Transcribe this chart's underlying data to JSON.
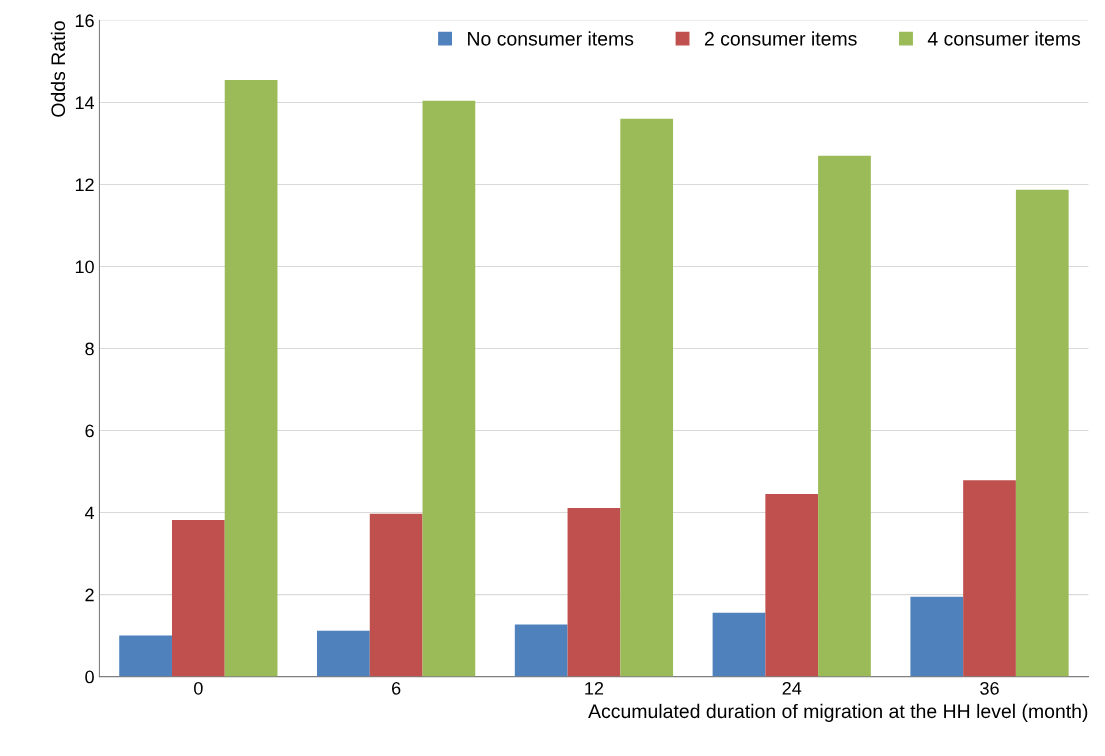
{
  "chart_data": {
    "type": "bar",
    "xlabel": "Accumulated duration of migration at the HH level (month)",
    "ylabel": "Odds Ratio",
    "categories": [
      "0",
      "6",
      "12",
      "24",
      "36"
    ],
    "series": [
      {
        "name": "No consumer items",
        "color": "#4f81bd",
        "values": [
          1.0,
          1.12,
          1.27,
          1.56,
          1.95
        ]
      },
      {
        "name": "2 consumer items",
        "color": "#c0504d",
        "values": [
          3.82,
          3.97,
          4.11,
          4.45,
          4.79
        ]
      },
      {
        "name": "4 consumer items",
        "color": "#9bbb59",
        "values": [
          14.55,
          14.04,
          13.6,
          12.7,
          11.87
        ]
      }
    ],
    "ylim": [
      0,
      16
    ],
    "yticks": [
      0,
      2,
      4,
      6,
      8,
      10,
      12,
      14,
      16
    ],
    "grid": "y",
    "legend": "top right"
  }
}
